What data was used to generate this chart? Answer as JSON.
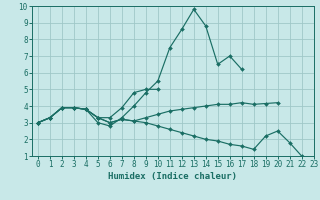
{
  "xlabel": "Humidex (Indice chaleur)",
  "bg_color": "#c8e8e8",
  "grid_color": "#a0c8c8",
  "line_color": "#1a6e64",
  "spine_color": "#1a6e64",
  "xlim": [
    -0.5,
    23
  ],
  "ylim": [
    1,
    10
  ],
  "xticks": [
    0,
    1,
    2,
    3,
    4,
    5,
    6,
    7,
    8,
    9,
    10,
    11,
    12,
    13,
    14,
    15,
    16,
    17,
    18,
    19,
    20,
    21,
    22,
    23
  ],
  "yticks": [
    1,
    2,
    3,
    4,
    5,
    6,
    7,
    8,
    9,
    10
  ],
  "lines": [
    {
      "x": [
        0,
        1,
        2,
        3,
        4,
        5,
        6,
        7,
        8,
        9,
        10,
        11,
        12,
        13,
        14,
        15,
        16,
        17
      ],
      "y": [
        3.0,
        3.3,
        3.9,
        3.9,
        3.8,
        3.0,
        2.8,
        3.3,
        4.0,
        4.8,
        5.5,
        7.5,
        8.6,
        9.8,
        8.8,
        6.5,
        7.0,
        6.2
      ]
    },
    {
      "x": [
        0,
        1,
        2,
        3,
        4,
        5,
        6,
        7,
        8,
        9,
        10
      ],
      "y": [
        3.0,
        3.3,
        3.9,
        3.9,
        3.8,
        3.3,
        3.3,
        3.9,
        4.8,
        5.0,
        5.0
      ]
    },
    {
      "x": [
        0,
        1,
        2,
        3,
        4,
        5,
        6,
        7,
        8,
        9,
        10,
        11,
        12,
        13,
        14,
        15,
        16,
        17,
        18,
        19,
        20,
        21,
        22
      ],
      "y": [
        3.0,
        3.3,
        3.9,
        3.9,
        3.8,
        3.3,
        3.0,
        3.2,
        3.1,
        3.0,
        2.8,
        2.6,
        2.4,
        2.2,
        2.0,
        1.9,
        1.7,
        1.6,
        1.4,
        2.2,
        2.5,
        1.8,
        1.0
      ]
    },
    {
      "x": [
        0,
        1,
        2,
        3,
        4,
        5,
        6,
        7,
        8,
        9,
        10,
        11,
        12,
        13,
        14,
        15,
        16,
        17,
        18,
        19,
        20
      ],
      "y": [
        3.0,
        3.3,
        3.9,
        3.9,
        3.8,
        3.3,
        3.0,
        3.2,
        3.1,
        3.3,
        3.5,
        3.7,
        3.8,
        3.9,
        4.0,
        4.1,
        4.1,
        4.2,
        4.1,
        4.15,
        4.2
      ]
    }
  ],
  "tick_fontsize": 5.5,
  "xlabel_fontsize": 6.5
}
